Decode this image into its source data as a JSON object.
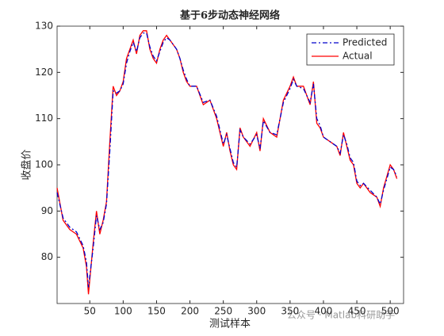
{
  "chart_data": {
    "type": "line",
    "title": "基于6步动态神经网络",
    "x_label": "测试样本",
    "y_label": "收盘价",
    "watermark": "公众号 · Matlab科研助手",
    "x": [
      1,
      10,
      20,
      30,
      40,
      45,
      48,
      55,
      60,
      65,
      70,
      75,
      80,
      85,
      90,
      95,
      100,
      105,
      110,
      115,
      120,
      125,
      130,
      135,
      140,
      145,
      150,
      155,
      160,
      165,
      170,
      175,
      180,
      185,
      190,
      195,
      200,
      210,
      220,
      230,
      240,
      250,
      255,
      260,
      265,
      270,
      275,
      280,
      290,
      300,
      305,
      310,
      320,
      330,
      340,
      350,
      355,
      360,
      370,
      380,
      385,
      390,
      395,
      400,
      410,
      420,
      425,
      430,
      435,
      440,
      445,
      450,
      455,
      460,
      470,
      480,
      485,
      490,
      500,
      505,
      510
    ],
    "series": [
      {
        "name": "Predicted",
        "color": "#0000cc",
        "dash": "6 3 2 3",
        "values": [
          94,
          88.5,
          86.5,
          85.5,
          82.5,
          79,
          73.5,
          82,
          89,
          86,
          87.5,
          91.5,
          103,
          116,
          115.5,
          116,
          117.5,
          122,
          124.5,
          126.5,
          124.5,
          127.5,
          128.5,
          128.5,
          125.5,
          123.5,
          122.5,
          124.5,
          126.5,
          127.5,
          127,
          126,
          125,
          123,
          120.5,
          118.5,
          117,
          117,
          113.5,
          114,
          110.5,
          104.5,
          106.5,
          103.5,
          100.5,
          99.5,
          107.5,
          106,
          104.5,
          106.5,
          103.5,
          109.5,
          107,
          106.5,
          113.5,
          116.5,
          118.5,
          117,
          116.5,
          113.5,
          117.5,
          110,
          108.5,
          106,
          105,
          104,
          102.5,
          106.5,
          104.5,
          101.5,
          100.5,
          96.5,
          95.5,
          96,
          94.5,
          93,
          91.5,
          94.5,
          99.5,
          99,
          97.5
        ]
      },
      {
        "name": "Actual",
        "color": "#ff0000",
        "dash": "none",
        "values": [
          95,
          88,
          86,
          85,
          82,
          78,
          72,
          83,
          90,
          85,
          88,
          92,
          105,
          117,
          115,
          116,
          118,
          123,
          125,
          127,
          124,
          128,
          129,
          129,
          125,
          123,
          122,
          125,
          127,
          128,
          127,
          126,
          125,
          123,
          120,
          118,
          117,
          117,
          113,
          114,
          110,
          104,
          107,
          103,
          100,
          99,
          108,
          106,
          104,
          107,
          103,
          110,
          107,
          106,
          114,
          117,
          119,
          117,
          117,
          113,
          118,
          109,
          108,
          106,
          105,
          104,
          102,
          107,
          104,
          101,
          100,
          96,
          95,
          96,
          94,
          93,
          91,
          95,
          100,
          99,
          97
        ]
      }
    ],
    "xlim": [
      1,
      520
    ],
    "ylim": [
      70,
      130
    ],
    "xticks": [
      50,
      100,
      150,
      200,
      250,
      300,
      350,
      400,
      450,
      500
    ],
    "yticks": [
      80,
      90,
      100,
      110,
      120,
      130
    ],
    "legend": "top-right"
  }
}
